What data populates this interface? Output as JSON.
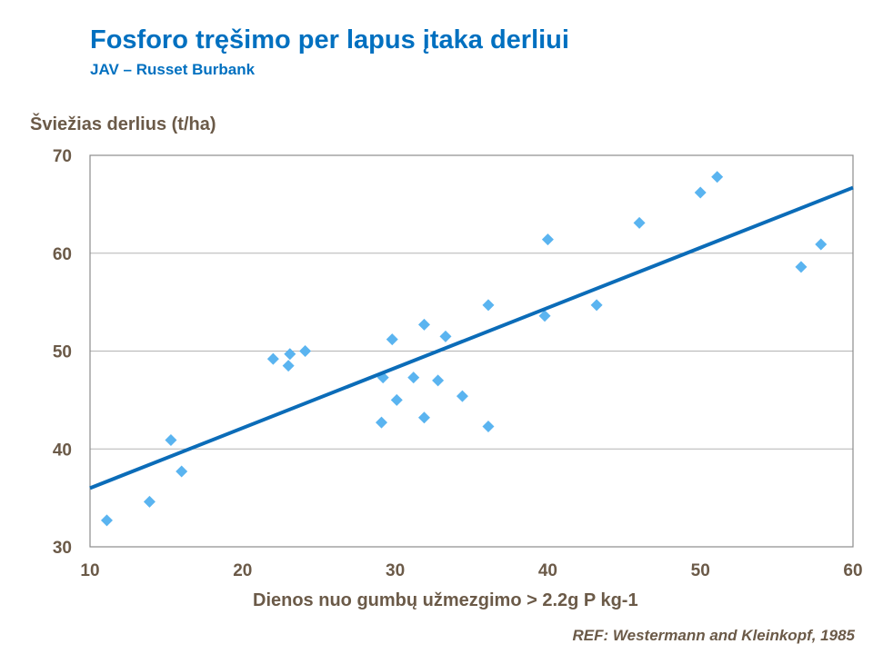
{
  "chart_data": {
    "type": "scatter",
    "title": "Fosforo tręšimo per lapus įtaka derliui",
    "subtitle": "JAV – Russet Burbank",
    "xlabel": "Dienos nuo gumbų užmezgimo > 2.2g P kg-1",
    "ylabel": "Šviežias derlius (t/ha)",
    "annotation": "REF: Westermann and Kleinkopf, 1985",
    "xlim": [
      10,
      60
    ],
    "ylim": [
      30,
      70
    ],
    "xticks": [
      10,
      20,
      30,
      40,
      50,
      60
    ],
    "yticks": [
      30,
      40,
      50,
      60,
      70
    ],
    "grid": "horizontal",
    "legend": "none",
    "colors": {
      "points": "#5AB4F0",
      "trendline": "#0B6CB8",
      "title": "#0070C0",
      "text": "#6B5A48"
    },
    "points": [
      [
        11.1,
        32.7
      ],
      [
        13.9,
        34.6
      ],
      [
        15.3,
        40.9
      ],
      [
        16.0,
        37.7
      ],
      [
        22.0,
        49.2
      ],
      [
        23.0,
        48.5
      ],
      [
        23.1,
        49.7
      ],
      [
        24.1,
        50.0
      ],
      [
        29.1,
        42.7
      ],
      [
        29.2,
        47.3
      ],
      [
        29.8,
        51.2
      ],
      [
        30.1,
        45.0
      ],
      [
        31.2,
        47.3
      ],
      [
        31.9,
        52.7
      ],
      [
        31.9,
        43.2
      ],
      [
        32.8,
        47.0
      ],
      [
        33.3,
        51.5
      ],
      [
        34.4,
        45.4
      ],
      [
        36.1,
        54.7
      ],
      [
        36.1,
        42.3
      ],
      [
        39.8,
        53.6
      ],
      [
        40.0,
        61.4
      ],
      [
        43.2,
        54.7
      ],
      [
        46.0,
        63.1
      ],
      [
        50.0,
        66.2
      ],
      [
        51.1,
        67.8
      ],
      [
        56.6,
        58.6
      ],
      [
        57.9,
        60.9
      ]
    ],
    "trendline": [
      [
        10,
        36.0
      ],
      [
        60,
        66.7
      ]
    ]
  }
}
